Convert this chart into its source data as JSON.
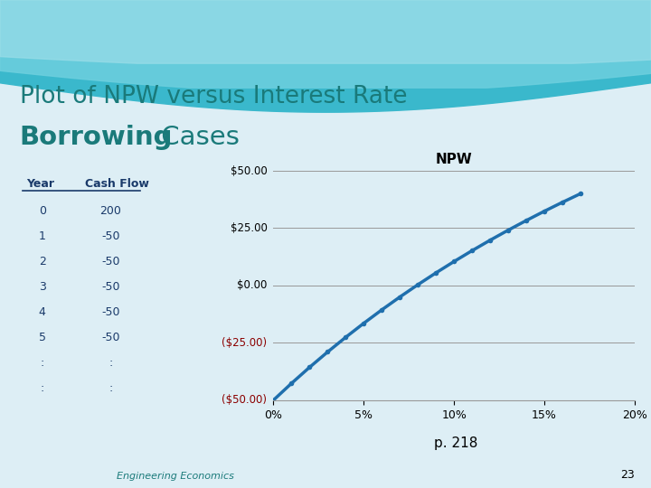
{
  "title_line1": "Plot of NPW versus Interest Rate",
  "title_line2_bold": "Borrowing",
  "title_line2_rest": " Cases",
  "title_color": "#1a7a7a",
  "bold_color": "#1a7a7a",
  "slide_bg": "#ddeef5",
  "chart_title": "NPW",
  "table_headers": [
    "Year",
    "Cash Flow"
  ],
  "table_years": [
    "0",
    "1",
    "2",
    "3",
    "4",
    "5",
    ":",
    ":"
  ],
  "table_cashflows": [
    "200",
    "-50",
    "-50",
    "-50",
    "-50",
    "-50",
    ":",
    ":"
  ],
  "x_ticks": [
    0,
    5,
    10,
    15,
    20
  ],
  "x_tick_labels": [
    "0%",
    "5%",
    "10%",
    "15%",
    "20%"
  ],
  "y_ticks": [
    -50,
    -25,
    0,
    25,
    50
  ],
  "y_tick_labels": [
    "($50.00)",
    "($25.00)",
    "$0.00",
    "$25.00",
    "$50.00"
  ],
  "y_negative_color": "#8b0000",
  "y_positive_color": "#000000",
  "line_color": "#1f6fad",
  "line_width": 2.5,
  "marker": "o",
  "marker_size": 4,
  "footnote": "p. 218",
  "footer": "Engineering Economics",
  "footer_color": "#1a7a7a",
  "page_num": "23",
  "xlim": [
    0,
    20
  ],
  "ylim": [
    -50,
    50
  ],
  "interest_rates": [
    0,
    1,
    2,
    3,
    4,
    5,
    6,
    7,
    8,
    9,
    10,
    11,
    12,
    13,
    14,
    15,
    16,
    17
  ],
  "cf0": 200,
  "annual_cf": -50,
  "n_years": 5,
  "wave_color1": "#3ab8cc",
  "wave_color2": "#6dcfde",
  "wave_color3": "#9adde8",
  "table_header_color": "#1a3a6a",
  "table_row_color": "#1a3a6a"
}
